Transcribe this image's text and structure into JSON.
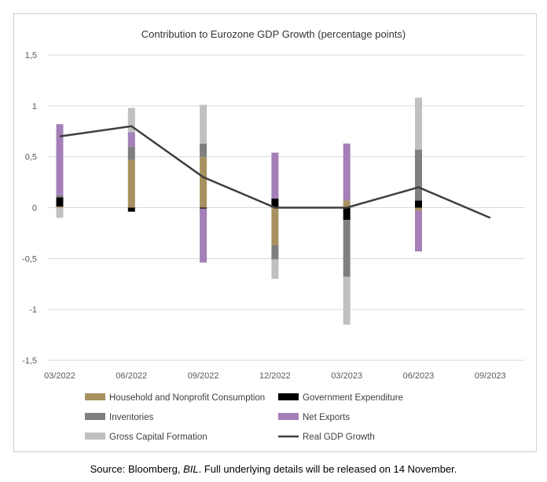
{
  "chart_data": {
    "type": "bar",
    "title": "Contribution to Eurozone GDP Growth (percentage points)",
    "categories": [
      "03/2022",
      "06/2022",
      "09/2022",
      "12/2022",
      "03/2023",
      "06/2023",
      "09/2023"
    ],
    "ylim": [
      -1.5,
      1.5
    ],
    "yticks": [
      "1,5",
      "1",
      "0,5",
      "0",
      "-0,5",
      "-1",
      "-1,5"
    ],
    "ytick_values": [
      1.5,
      1,
      0.5,
      0,
      -0.5,
      -1,
      -1.5
    ],
    "grid": true,
    "legend_position": "bottom",
    "stacked": true,
    "series": [
      {
        "name": "Household and Nonprofit Consumption",
        "color": "#a89160",
        "values": [
          0.01,
          0.47,
          0.5,
          -0.37,
          0.07,
          -0.03,
          null
        ]
      },
      {
        "name": "Government Expenditure",
        "color": "#000000",
        "values": [
          0.09,
          -0.04,
          -0.01,
          0.09,
          -0.12,
          0.07,
          null
        ]
      },
      {
        "name": "Inventories",
        "color": "#7f7f7f",
        "values": [
          0.02,
          0.13,
          0.13,
          -0.14,
          -0.56,
          0.5,
          null
        ]
      },
      {
        "name": "Net Exports",
        "color": "#a47fb8",
        "values": [
          0.7,
          0.14,
          -0.53,
          0.45,
          0.56,
          -0.4,
          null
        ]
      },
      {
        "name": "Gross Capital Formation",
        "color": "#c0c0c0",
        "values": [
          -0.1,
          0.24,
          0.38,
          -0.19,
          -0.47,
          0.51,
          null
        ]
      }
    ],
    "line": {
      "name": "Real GDP Growth",
      "color": "#3f3f3f",
      "values": [
        0.7,
        0.8,
        0.3,
        0.0,
        0.0,
        0.2,
        -0.1
      ]
    }
  },
  "source": {
    "prefix": "Source: Bloomberg, ",
    "italic": "BIL",
    "suffix": ". Full underlying details will be released on 14 November."
  }
}
